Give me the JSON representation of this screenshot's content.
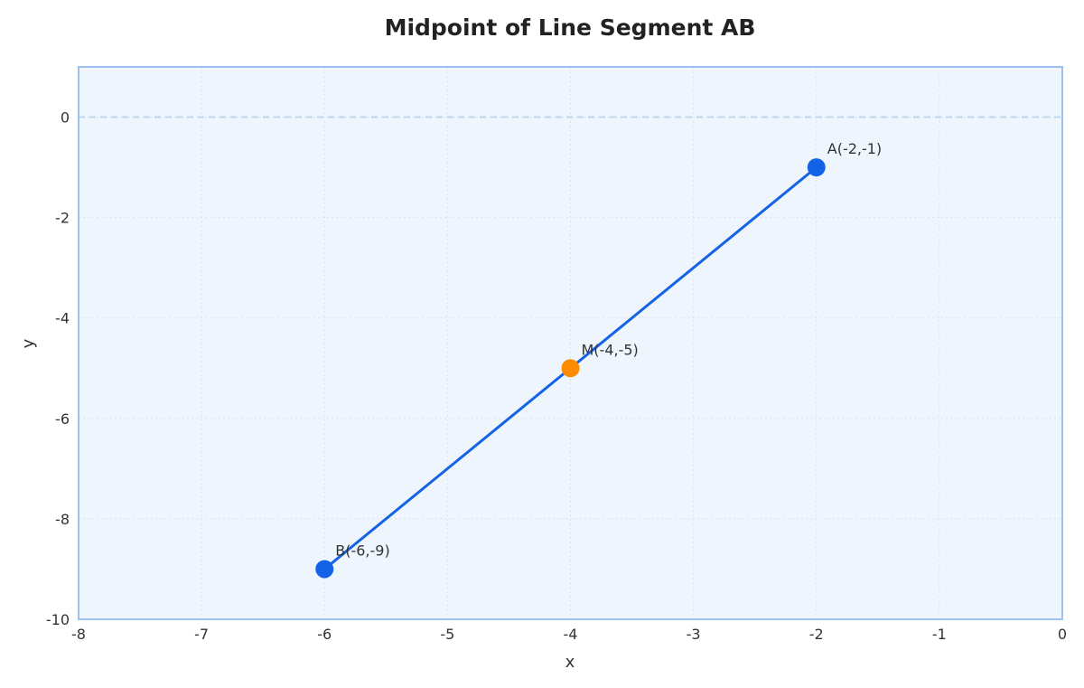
{
  "chart_data": {
    "type": "scatter",
    "title": "Midpoint of Line Segment AB",
    "xlabel": "x",
    "ylabel": "y",
    "xlim": [
      -8,
      0
    ],
    "ylim": [
      -10,
      1
    ],
    "x_ticks": [
      "-8",
      "-7",
      "-6",
      "-5",
      "-4",
      "-3",
      "-2",
      "-1",
      "0"
    ],
    "y_ticks": [
      "0",
      "-2",
      "-4",
      "-6",
      "-8",
      "-10"
    ],
    "x_tick_values": [
      -8,
      -7,
      -6,
      -5,
      -4,
      -3,
      -2,
      -1,
      0
    ],
    "y_tick_values": [
      0,
      -2,
      -4,
      -6,
      -8,
      -10
    ],
    "grid": true,
    "reference_line": {
      "y": 0,
      "style": "dashed"
    },
    "segment": {
      "from": "B",
      "to": "A"
    },
    "points": [
      {
        "name": "A",
        "x": -2,
        "y": -1,
        "label": "A(-2,-1)",
        "color": "#1463e6"
      },
      {
        "name": "B",
        "x": -6,
        "y": -9,
        "label": "B(-6,-9)",
        "color": "#1463e6"
      },
      {
        "name": "M",
        "x": -4,
        "y": -5,
        "label": "M(-4,-5)",
        "color": "#ff8c00"
      }
    ],
    "colors": {
      "segment": "#1463e6",
      "plot_background": "#eef5fd",
      "plot_border": "#9cc1ef",
      "grid": "#d6e4f2",
      "reference_line": "#bcd6ee"
    }
  }
}
